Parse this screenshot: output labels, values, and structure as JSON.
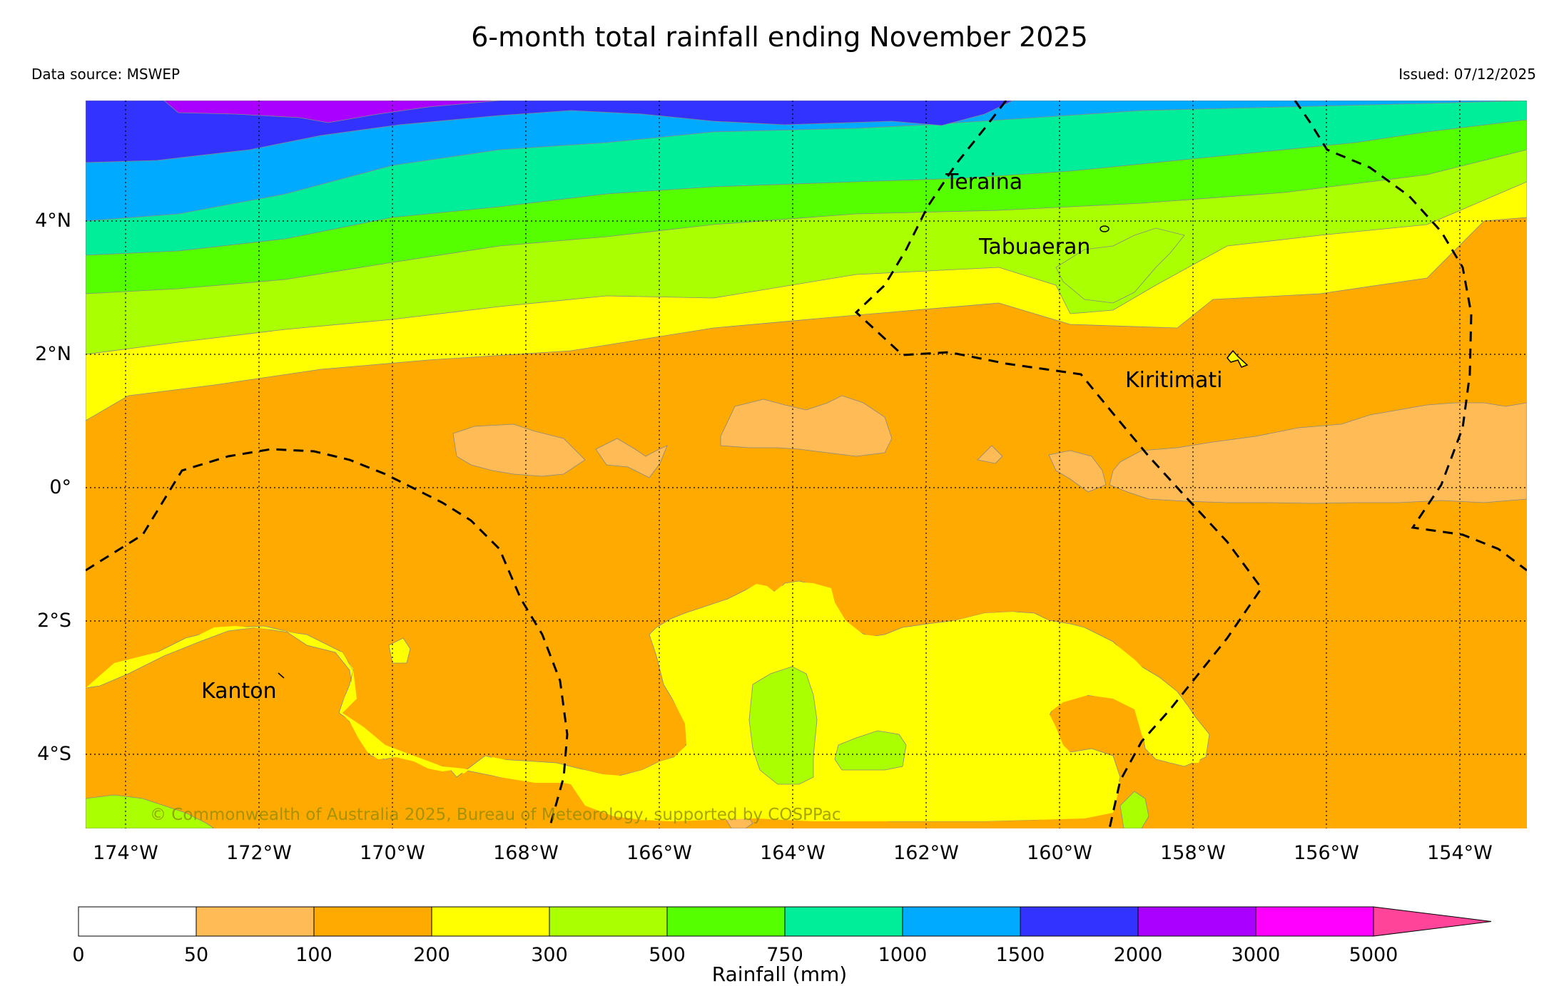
{
  "header": {
    "title": "6-month total rainfall ending November 2025",
    "source": "Data source: MSWEP",
    "issued": "Issued: 07/12/2025"
  },
  "map": {
    "lon_ticks": [
      "174°W",
      "172°W",
      "170°W",
      "168°W",
      "166°W",
      "164°W",
      "162°W",
      "160°W",
      "158°W",
      "156°W",
      "154°W"
    ],
    "lat_ticks": [
      "4°N",
      "2°N",
      "0°",
      "2°S",
      "4°S"
    ],
    "places": [
      {
        "name": "Teraina"
      },
      {
        "name": "Tabuaeran"
      },
      {
        "name": "Kiritimati"
      },
      {
        "name": "Kanton"
      }
    ],
    "copyright": "© Commonwealth of Australia 2025, Bureau of Meteorology, supported by COSPPac"
  },
  "legend": {
    "label": "Rainfall (mm)",
    "ticks": [
      "0",
      "50",
      "100",
      "200",
      "300",
      "500",
      "750",
      "1000",
      "1500",
      "2000",
      "3000",
      "5000"
    ],
    "colors": [
      "#ffffff",
      "#ffbb55",
      "#ffaa00",
      "#ffff00",
      "#aaff00",
      "#55ff00",
      "#00ee99",
      "#00aaff",
      "#3333ff",
      "#aa00ff",
      "#ff00ff",
      "#ff4499"
    ]
  }
}
